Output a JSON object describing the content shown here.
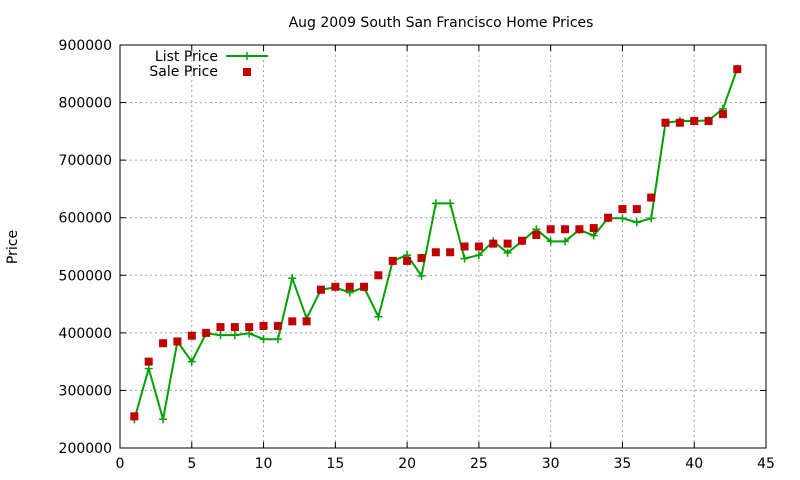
{
  "chart_data": {
    "type": "line",
    "title": "Aug 2009 South San Francisco Home Prices",
    "xlabel": "",
    "ylabel": "Price",
    "xlim": [
      0,
      45
    ],
    "ylim": [
      200000,
      900000
    ],
    "x_ticks": [
      "0",
      "5",
      "10",
      "15",
      "20",
      "25",
      "30",
      "35",
      "40",
      "45"
    ],
    "y_ticks": [
      "200000",
      "300000",
      "400000",
      "500000",
      "600000",
      "700000",
      "800000",
      "900000"
    ],
    "grid": true,
    "legend_position": "top-left",
    "x": [
      1,
      2,
      3,
      4,
      5,
      6,
      7,
      8,
      9,
      10,
      11,
      12,
      13,
      14,
      15,
      16,
      17,
      18,
      19,
      20,
      21,
      22,
      23,
      24,
      25,
      26,
      27,
      28,
      29,
      30,
      31,
      32,
      33,
      34,
      35,
      36,
      37,
      38,
      39,
      40,
      41,
      42,
      43
    ],
    "series": [
      {
        "name": "List Price",
        "style": "line-points",
        "color": "#00a000",
        "values": [
          250000,
          338000,
          250000,
          385000,
          350000,
          399000,
          396000,
          396000,
          399000,
          389000,
          389000,
          495000,
          425000,
          475000,
          479000,
          470000,
          479000,
          428000,
          525000,
          535000,
          499000,
          625000,
          625000,
          529000,
          535000,
          559000,
          539000,
          559000,
          580000,
          559000,
          559000,
          579000,
          569000,
          599000,
          599000,
          592000,
          599000,
          765000,
          768000,
          768000,
          769000,
          789000,
          859000
        ]
      },
      {
        "name": "Sale Price",
        "style": "points",
        "color": "#c00000",
        "values": [
          255000,
          350000,
          382000,
          385000,
          395000,
          400000,
          410000,
          410000,
          410000,
          412000,
          412000,
          420000,
          420000,
          475000,
          480000,
          480000,
          480000,
          500000,
          525000,
          525000,
          530000,
          540000,
          540000,
          550000,
          550000,
          555000,
          555000,
          560000,
          570000,
          580000,
          580000,
          580000,
          582000,
          600000,
          615000,
          615000,
          635000,
          765000,
          765000,
          768000,
          768000,
          780000,
          858000
        ]
      }
    ]
  }
}
